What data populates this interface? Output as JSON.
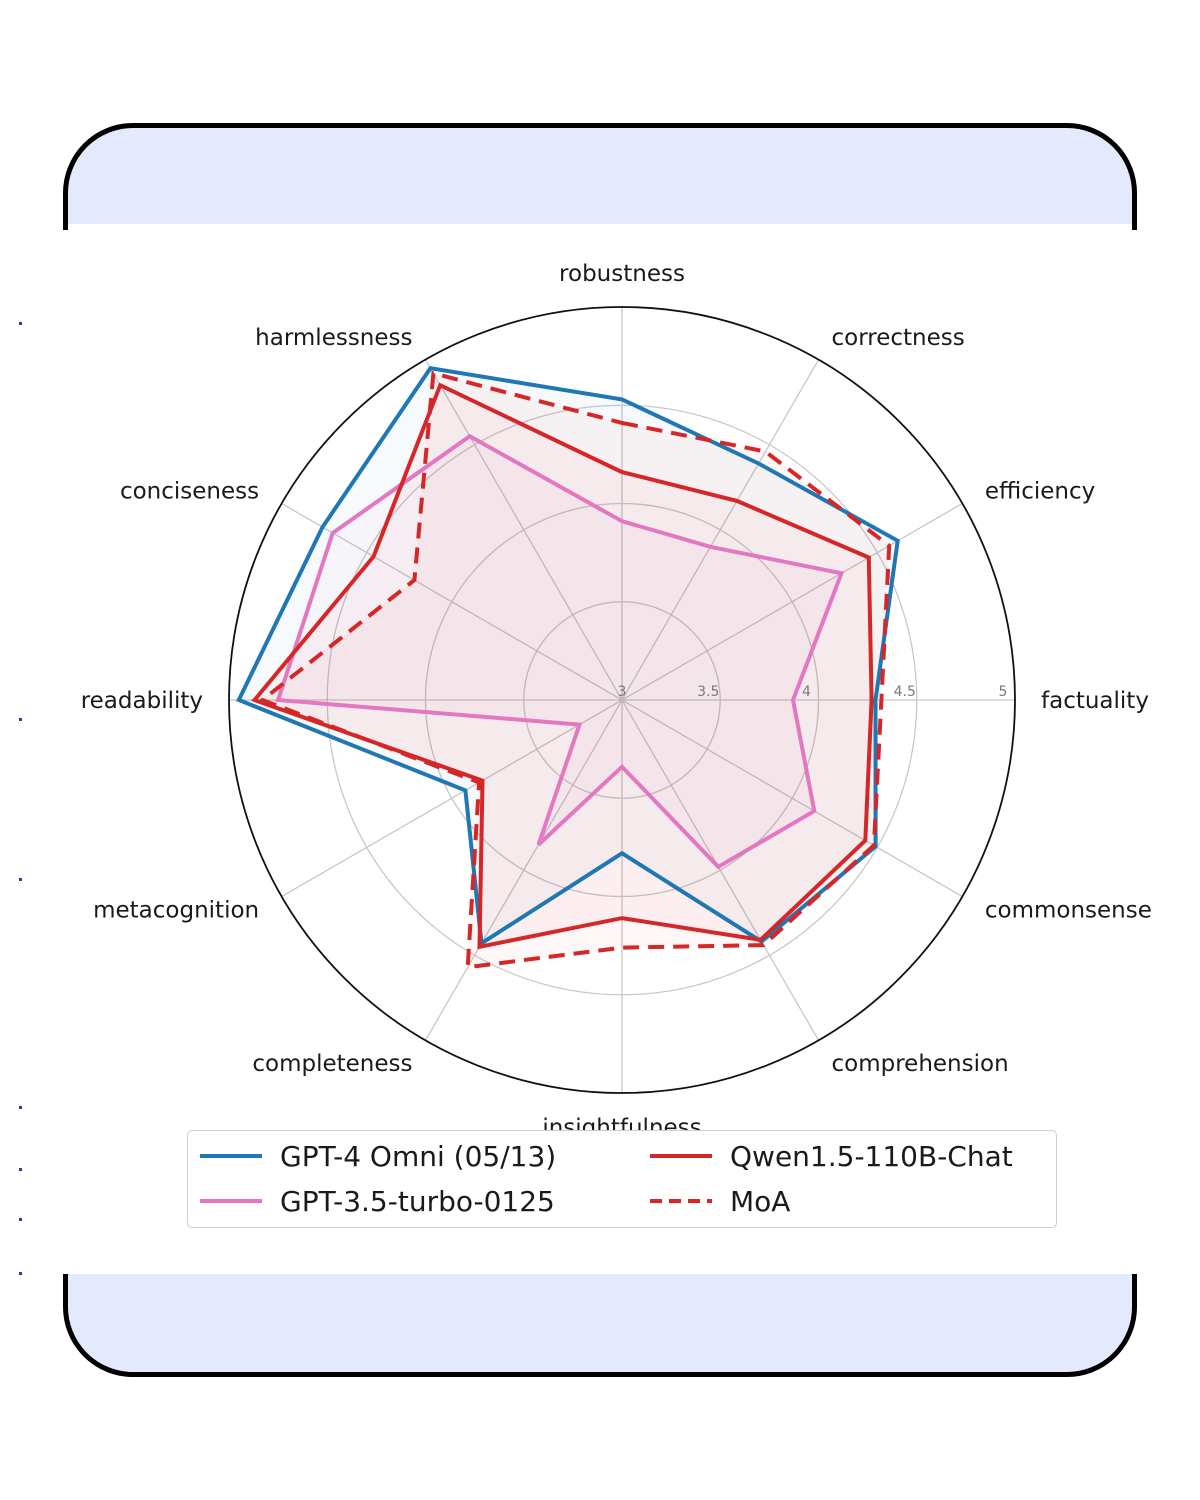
{
  "chart_data": {
    "type": "radar",
    "title": "",
    "axes": [
      "robustness",
      "correctness",
      "efficiency",
      "factuality",
      "commonsense",
      "comprehension",
      "insightfulness",
      "completeness",
      "metacognition",
      "readability",
      "conciseness",
      "harmlessness"
    ],
    "range": [
      3,
      5
    ],
    "ticks": [
      3,
      3.5,
      4,
      4.5,
      5
    ],
    "tick_labels": [
      "3",
      "3.5",
      "4",
      "4.5",
      "5"
    ],
    "grid": true,
    "legend": "bottom",
    "series": [
      {
        "name": "GPT-4 Omni (05/13)",
        "color": "#1f77b4",
        "dash": "solid",
        "values": [
          4.53,
          4.39,
          4.62,
          4.29,
          4.49,
          4.42,
          3.78,
          4.43,
          3.92,
          4.95,
          4.76,
          4.95
        ]
      },
      {
        "name": "GPT-3.5-turbo-0125",
        "color": "#e377c2",
        "dash": "solid",
        "values": [
          3.91,
          3.9,
          4.29,
          3.87,
          4.13,
          3.98,
          3.34,
          3.85,
          3.25,
          4.75,
          4.7,
          4.55
        ]
      },
      {
        "name": "Qwen1.5-110B-Chat",
        "color": "#d62728",
        "dash": "solid",
        "values": [
          4.16,
          4.17,
          4.45,
          4.27,
          4.43,
          4.41,
          4.11,
          4.45,
          3.82,
          4.87,
          4.46,
          4.85
        ]
      },
      {
        "name": "MoA",
        "color": "#d62728",
        "dash": "dashed",
        "values": [
          4.41,
          4.46,
          4.57,
          4.32,
          4.48,
          4.44,
          4.26,
          4.57,
          3.84,
          4.83,
          4.22,
          4.92
        ]
      }
    ]
  }
}
